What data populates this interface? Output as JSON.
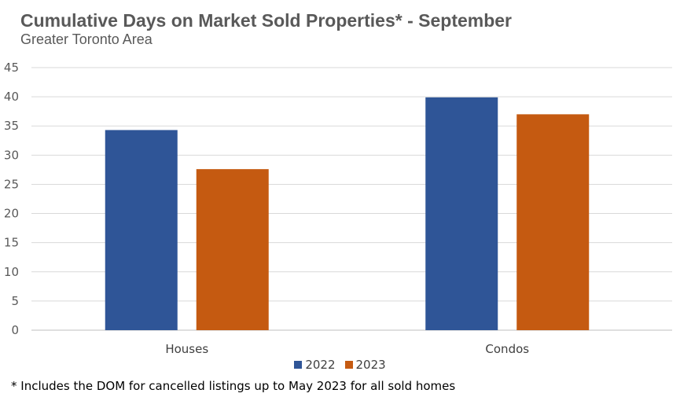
{
  "title": "Cumulative Days on Market Sold Properties* - September",
  "subtitle": "Greater Toronto Area",
  "footnote": "* Includes the DOM for cancelled listings up to May 2023 for all sold homes",
  "colors": {
    "2022": "#2F5597",
    "2023": "#C55A11",
    "grid": "#D9D9D9",
    "axis": "#BFBFBF"
  },
  "chart_data": {
    "type": "bar",
    "title": "Cumulative Days on Market Sold Properties* - September",
    "subtitle": "Greater Toronto Area",
    "categories": [
      "Houses",
      "Condos"
    ],
    "series": [
      {
        "name": "2022",
        "values": [
          34.3,
          39.9
        ]
      },
      {
        "name": "2023",
        "values": [
          27.6,
          37.0
        ]
      }
    ],
    "ylim": [
      0,
      45
    ],
    "yticks": [
      "0",
      "5",
      "10",
      "15",
      "20",
      "25",
      "30",
      "35",
      "40",
      "45"
    ],
    "grid": true,
    "legend": "bottom"
  }
}
